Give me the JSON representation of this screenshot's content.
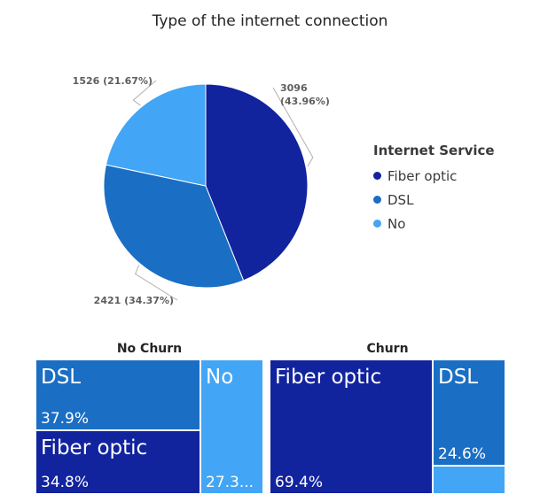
{
  "chart_data": [
    {
      "type": "pie",
      "title": "Type of the internet connection",
      "legend_title": "Internet Service",
      "legend_position": "right",
      "categories": [
        "Fiber optic",
        "DSL",
        "No"
      ],
      "values": [
        3096,
        2421,
        1526
      ],
      "labels": [
        "3096 (43.96%)",
        "2421 (34.37%)",
        "1526 (21.67%)"
      ],
      "colors": [
        "#12239e",
        "#1a6ec4",
        "#42a5f5"
      ]
    },
    {
      "type": "treemap",
      "title": "No Churn",
      "categories": [
        "DSL",
        "Fiber optic",
        "No"
      ],
      "values": [
        37.9,
        34.8,
        27.3
      ],
      "value_labels": [
        "37.9%",
        "34.8%",
        "27.3..."
      ],
      "colors": [
        "#1a6ec4",
        "#12239e",
        "#42a5f5"
      ]
    },
    {
      "type": "treemap",
      "title": "Churn",
      "categories": [
        "Fiber optic",
        "DSL",
        "No"
      ],
      "values": [
        69.4,
        24.6,
        6.0
      ],
      "name_labels": [
        "Fiber optic",
        "DSL",
        ""
      ],
      "value_labels": [
        "69.4%",
        "24.6%",
        ""
      ],
      "colors": [
        "#12239e",
        "#1a6ec4",
        "#42a5f5"
      ]
    }
  ]
}
